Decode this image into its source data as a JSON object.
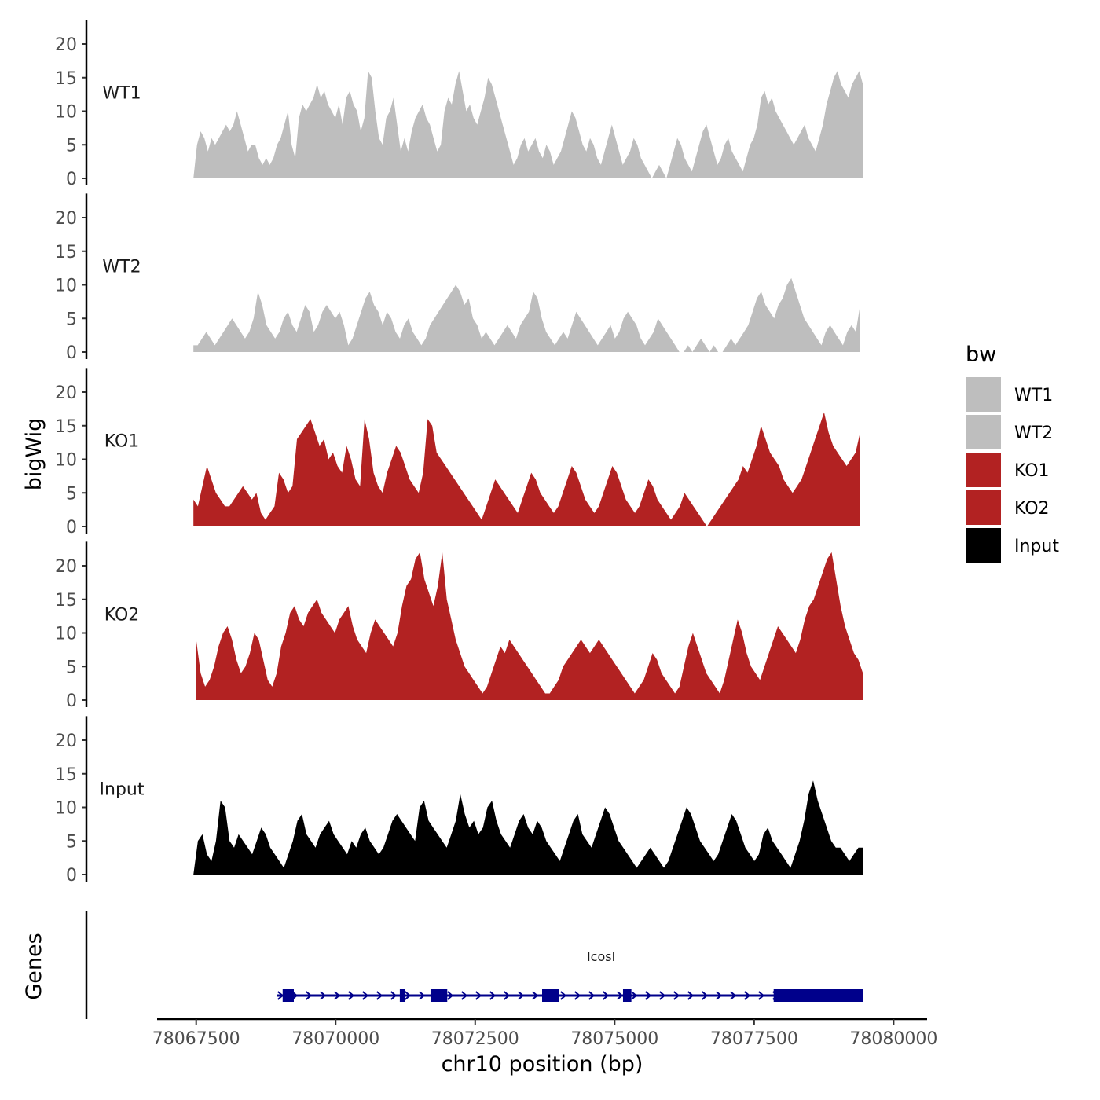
{
  "chart_data": {
    "type": "area",
    "chromosome": "chr10",
    "xlabel": "chr10 position (bp)",
    "ylabel": "bigWig",
    "xlim": [
      78066800,
      78080600
    ],
    "ylim": [
      0,
      23
    ],
    "xticks": [
      78067500,
      78070000,
      78072500,
      78075000,
      78077500,
      78080000
    ],
    "xtick_labels": [
      "78067500",
      "78070000",
      "78072500",
      "78075000",
      "78077500",
      "78080000"
    ],
    "yticks": [
      0,
      5,
      10,
      15,
      20
    ],
    "ytick_labels": [
      "0",
      "5",
      "10",
      "15",
      "20"
    ],
    "genes_label": "Genes",
    "legend": {
      "title": "bw",
      "position": "right",
      "entries": [
        {
          "label": "WT1",
          "color": "#bebebe"
        },
        {
          "label": "WT2",
          "color": "#bebebe"
        },
        {
          "label": "KO1",
          "color": "#b22222"
        },
        {
          "label": "KO2",
          "color": "#b22222"
        },
        {
          "label": "Input",
          "color": "#000000"
        }
      ]
    },
    "series": [
      {
        "name": "WT1",
        "color": "#bebebe",
        "x_start": 78067450,
        "x_end": 78079450,
        "values": [
          0,
          5,
          7,
          6,
          4,
          6,
          5,
          6,
          7,
          8,
          7,
          8,
          10,
          8,
          6,
          4,
          5,
          5,
          3,
          2,
          3,
          2,
          3,
          5,
          6,
          8,
          10,
          5,
          3,
          9,
          11,
          10,
          11,
          12,
          14,
          12,
          13,
          11,
          10,
          9,
          11,
          8,
          12,
          13,
          11,
          10,
          7,
          9,
          16,
          15,
          10,
          6,
          5,
          9,
          10,
          12,
          8,
          4,
          6,
          4,
          7,
          9,
          10,
          11,
          9,
          8,
          6,
          4,
          5,
          10,
          12,
          11,
          14,
          16,
          13,
          10,
          11,
          9,
          8,
          10,
          12,
          15,
          14,
          12,
          10,
          8,
          6,
          4,
          2,
          3,
          5,
          6,
          4,
          5,
          6,
          4,
          3,
          5,
          4,
          2,
          3,
          4,
          6,
          8,
          10,
          9,
          7,
          5,
          4,
          6,
          5,
          3,
          2,
          4,
          6,
          8,
          6,
          4,
          2,
          3,
          4,
          6,
          5,
          3,
          2,
          1,
          0,
          1,
          2,
          1,
          0,
          2,
          4,
          6,
          5,
          3,
          2,
          1,
          3,
          5,
          7,
          8,
          6,
          4,
          2,
          3,
          5,
          6,
          4,
          3,
          2,
          1,
          3,
          5,
          6,
          8,
          12,
          13,
          11,
          12,
          10,
          9,
          8,
          7,
          6,
          5,
          6,
          7,
          8,
          6,
          5,
          4,
          6,
          8,
          11,
          13,
          15,
          16,
          14,
          13,
          12,
          14,
          15,
          16,
          14
        ],
        "track_label": "WT1"
      },
      {
        "name": "WT2",
        "color": "#bebebe",
        "x_start": 78067450,
        "x_end": 78079400,
        "values": [
          1,
          1,
          2,
          3,
          2,
          1,
          2,
          3,
          4,
          5,
          4,
          3,
          2,
          3,
          5,
          9,
          7,
          4,
          3,
          2,
          3,
          5,
          6,
          4,
          3,
          5,
          7,
          6,
          3,
          4,
          6,
          7,
          6,
          5,
          6,
          4,
          1,
          2,
          4,
          6,
          8,
          9,
          7,
          6,
          4,
          6,
          5,
          3,
          2,
          4,
          5,
          3,
          2,
          1,
          2,
          4,
          5,
          6,
          7,
          8,
          9,
          10,
          9,
          7,
          8,
          5,
          4,
          2,
          3,
          2,
          1,
          2,
          3,
          4,
          3,
          2,
          4,
          5,
          6,
          9,
          8,
          5,
          3,
          2,
          1,
          2,
          3,
          2,
          4,
          6,
          5,
          4,
          3,
          2,
          1,
          2,
          3,
          4,
          2,
          3,
          5,
          6,
          5,
          4,
          2,
          1,
          2,
          3,
          5,
          4,
          3,
          2,
          1,
          0,
          0,
          1,
          0,
          1,
          2,
          1,
          0,
          1,
          0,
          0,
          1,
          2,
          1,
          2,
          3,
          4,
          6,
          8,
          9,
          7,
          6,
          5,
          7,
          8,
          10,
          11,
          9,
          7,
          5,
          4,
          3,
          2,
          1,
          3,
          4,
          3,
          2,
          1,
          3,
          4,
          3,
          7
        ],
        "track_label": "WT2"
      },
      {
        "name": "KO1",
        "color": "#b22222",
        "x_start": 78067450,
        "x_end": 78079400,
        "values": [
          4,
          3,
          6,
          9,
          7,
          5,
          4,
          3,
          3,
          4,
          5,
          6,
          5,
          4,
          5,
          2,
          1,
          2,
          3,
          8,
          7,
          5,
          6,
          13,
          14,
          15,
          16,
          14,
          12,
          13,
          10,
          11,
          9,
          8,
          12,
          10,
          7,
          6,
          16,
          13,
          8,
          6,
          5,
          8,
          10,
          12,
          11,
          9,
          7,
          6,
          5,
          8,
          16,
          15,
          11,
          10,
          9,
          8,
          7,
          6,
          5,
          4,
          3,
          2,
          1,
          3,
          5,
          7,
          6,
          5,
          4,
          3,
          2,
          4,
          6,
          8,
          7,
          5,
          4,
          3,
          2,
          3,
          5,
          7,
          9,
          8,
          6,
          4,
          3,
          2,
          3,
          5,
          7,
          9,
          8,
          6,
          4,
          3,
          2,
          3,
          5,
          7,
          6,
          4,
          3,
          2,
          1,
          2,
          3,
          5,
          4,
          3,
          2,
          1,
          0,
          1,
          2,
          3,
          4,
          5,
          6,
          7,
          9,
          8,
          10,
          12,
          15,
          13,
          11,
          10,
          9,
          7,
          6,
          5,
          6,
          7,
          9,
          11,
          13,
          15,
          17,
          14,
          12,
          11,
          10,
          9,
          10,
          11,
          14
        ],
        "track_label": "KO1"
      },
      {
        "name": "KO2",
        "color": "#b22222",
        "x_start": 78067500,
        "x_end": 78079450,
        "values": [
          9,
          4,
          2,
          3,
          5,
          8,
          10,
          11,
          9,
          6,
          4,
          5,
          7,
          10,
          9,
          6,
          3,
          2,
          4,
          8,
          10,
          13,
          14,
          12,
          11,
          13,
          14,
          15,
          13,
          12,
          11,
          10,
          12,
          13,
          14,
          11,
          9,
          8,
          7,
          10,
          12,
          11,
          10,
          9,
          8,
          10,
          14,
          17,
          18,
          21,
          22,
          18,
          16,
          14,
          17,
          22,
          15,
          12,
          9,
          7,
          5,
          4,
          3,
          2,
          1,
          2,
          4,
          6,
          8,
          7,
          9,
          8,
          7,
          6,
          5,
          4,
          3,
          2,
          1,
          1,
          2,
          3,
          5,
          6,
          7,
          8,
          9,
          8,
          7,
          8,
          9,
          8,
          7,
          6,
          5,
          4,
          3,
          2,
          1,
          2,
          3,
          5,
          7,
          6,
          4,
          3,
          2,
          1,
          2,
          5,
          8,
          10,
          8,
          6,
          4,
          3,
          2,
          1,
          3,
          6,
          9,
          12,
          10,
          7,
          5,
          4,
          3,
          5,
          7,
          9,
          11,
          10,
          9,
          8,
          7,
          9,
          12,
          14,
          15,
          17,
          19,
          21,
          22,
          18,
          14,
          11,
          9,
          7,
          6,
          4
        ],
        "track_label": "KO2"
      },
      {
        "name": "Input",
        "color": "#000000",
        "x_start": 78067450,
        "x_end": 78079450,
        "values": [
          0,
          5,
          6,
          3,
          2,
          5,
          11,
          10,
          5,
          4,
          6,
          5,
          4,
          3,
          5,
          7,
          6,
          4,
          3,
          2,
          1,
          3,
          5,
          8,
          9,
          6,
          5,
          4,
          6,
          7,
          8,
          6,
          5,
          4,
          3,
          5,
          4,
          6,
          7,
          5,
          4,
          3,
          4,
          6,
          8,
          9,
          8,
          7,
          6,
          5,
          10,
          11,
          8,
          7,
          6,
          5,
          4,
          6,
          8,
          12,
          9,
          7,
          8,
          6,
          7,
          10,
          11,
          8,
          6,
          5,
          4,
          6,
          8,
          9,
          7,
          6,
          8,
          7,
          5,
          4,
          3,
          2,
          4,
          6,
          8,
          9,
          6,
          5,
          4,
          6,
          8,
          10,
          9,
          7,
          5,
          4,
          3,
          2,
          1,
          2,
          3,
          4,
          3,
          2,
          1,
          2,
          4,
          6,
          8,
          10,
          9,
          7,
          5,
          4,
          3,
          2,
          3,
          5,
          7,
          9,
          8,
          6,
          4,
          3,
          2,
          3,
          6,
          7,
          5,
          4,
          3,
          2,
          1,
          3,
          5,
          8,
          12,
          14,
          11,
          9,
          7,
          5,
          4,
          4,
          3,
          2,
          3,
          4,
          4
        ],
        "track_label": "Input"
      }
    ],
    "gene": {
      "name": "Icosl",
      "color": "#00008b",
      "x_start": 78068950,
      "x_end": 78079450,
      "strand": "+",
      "exons": [
        [
          78069050,
          78069250
        ],
        [
          78071150,
          78071250
        ],
        [
          78071700,
          78072000
        ],
        [
          78073700,
          78074000
        ],
        [
          78075150,
          78075300
        ],
        [
          78077850,
          78079450
        ]
      ]
    }
  }
}
